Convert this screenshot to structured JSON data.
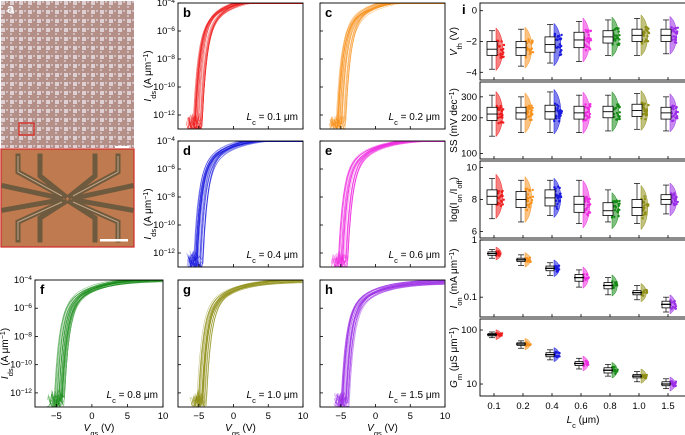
{
  "panels": {
    "a": "a",
    "b": "b",
    "c": "c",
    "d": "d",
    "e": "e",
    "f": "f",
    "g": "g",
    "h": "h",
    "i": "i"
  },
  "colors": {
    "0.1": "#ee1c1c",
    "0.2": "#f7921e",
    "0.4": "#1a1adf",
    "0.6": "#ee2ce0",
    "0.8": "#168a16",
    "1.0": "#8f8f18",
    "1.5": "#9a2ee6"
  },
  "transfer": {
    "xlabel": "V",
    "xlabel_sub": "gs",
    "xlabel_unit": " (V)",
    "ylabel": "I",
    "ylabel_sub": "ds",
    "ylabel_unit": " (A μm",
    "ylabel_exp": "−1",
    "ylabel_close": ")",
    "xticks": [
      "−5",
      "0",
      "5",
      "10"
    ],
    "yticks": [
      {
        "base": "10",
        "exp": "−4"
      },
      {
        "base": "10",
        "exp": "−6"
      },
      {
        "base": "10",
        "exp": "−8"
      },
      {
        "base": "10",
        "exp": "−10"
      },
      {
        "base": "10",
        "exp": "−12"
      }
    ],
    "lc_prefix": "L",
    "lc_sub": "c",
    "lc_unit": " μm"
  },
  "chart_data": [
    {
      "type": "line",
      "panel": "b",
      "Lc": "0.1",
      "label": "= 0.1",
      "xlim": [
        -8,
        10
      ],
      "ylim_log10": [
        -13,
        -4
      ],
      "vth": -5.1,
      "ion": 0.0003
    },
    {
      "type": "line",
      "panel": "c",
      "Lc": "0.2",
      "label": "= 0.2",
      "xlim": [
        -8,
        10
      ],
      "ylim_log10": [
        -13,
        -4
      ],
      "vth": -5.0,
      "ion": 0.00025
    },
    {
      "type": "line",
      "panel": "d",
      "Lc": "0.4",
      "label": "= 0.4",
      "xlim": [
        -8,
        10
      ],
      "ylim_log10": [
        -13,
        -4
      ],
      "vth": -5.0,
      "ion": 0.0002
    },
    {
      "type": "line",
      "panel": "e",
      "Lc": "0.6",
      "label": "= 0.6",
      "xlim": [
        -8,
        10
      ],
      "ylim_log10": [
        -13,
        -4
      ],
      "vth": -4.7,
      "ion": 0.00016
    },
    {
      "type": "line",
      "panel": "f",
      "Lc": "0.8",
      "label": "= 0.8",
      "xlim": [
        -8,
        10
      ],
      "ylim_log10": [
        -13,
        -4
      ],
      "vth": -4.6,
      "ion": 0.00012
    },
    {
      "type": "line",
      "panel": "g",
      "Lc": "1.0",
      "label": "= 1.0",
      "xlim": [
        -8,
        10
      ],
      "ylim_log10": [
        -13,
        -4
      ],
      "vth": -4.6,
      "ion": 0.0001
    },
    {
      "type": "line",
      "panel": "h",
      "Lc": "1.5",
      "label": "= 1.5",
      "xlim": [
        -8,
        10
      ],
      "ylim_log10": [
        -13,
        -4
      ],
      "vth": -4.5,
      "ion": 8e-05
    },
    {
      "type": "box",
      "panel": "i",
      "categories": [
        "0.1",
        "0.2",
        "0.4",
        "0.6",
        "0.8",
        "1.0",
        "1.5"
      ],
      "xlabel": "L",
      "xlabel_sub": "c",
      "xlabel_unit": " (μm)",
      "subplots": [
        {
          "id": "vth",
          "ylabel": "V",
          "ylabel_sub": "th",
          "ylabel_unit": " (V)",
          "scale": "linear",
          "ylim": [
            -4.5,
            0.5
          ],
          "yticks": [
            {
              "v": 0,
              "t": "0"
            },
            {
              "v": -2,
              "t": "−2"
            },
            {
              "v": -4,
              "t": "−4"
            }
          ],
          "median": [
            -2.5,
            -2.4,
            -2.2,
            -1.9,
            -1.7,
            -1.6,
            -1.6
          ],
          "q1": [
            -2.9,
            -2.9,
            -2.7,
            -2.4,
            -2.1,
            -2.0,
            -2.0
          ],
          "q3": [
            -2.0,
            -2.0,
            -1.7,
            -1.4,
            -1.3,
            -1.2,
            -1.2
          ],
          "min": [
            -3.8,
            -3.6,
            -3.4,
            -3.3,
            -2.9,
            -2.9,
            -2.8
          ],
          "max": [
            -1.3,
            -1.2,
            -0.9,
            -0.7,
            -0.6,
            -0.5,
            -0.6
          ]
        },
        {
          "id": "ss",
          "ylabel": "SS (mV dec",
          "ylabel_sub": "",
          "ylabel_exp": "−1",
          "ylabel_unit": ")",
          "scale": "log",
          "ylim": [
            90,
            400
          ],
          "yticks": [
            {
              "v": 300,
              "t": "300"
            },
            {
              "v": 200,
              "t": "200"
            },
            {
              "v": 100,
              "t": "100"
            }
          ],
          "median": [
            215,
            220,
            225,
            220,
            225,
            230,
            220
          ],
          "q1": [
            190,
            195,
            195,
            195,
            200,
            205,
            195
          ],
          "q3": [
            245,
            245,
            255,
            250,
            250,
            260,
            245
          ],
          "min": [
            140,
            150,
            150,
            150,
            155,
            160,
            155
          ],
          "max": [
            310,
            300,
            330,
            310,
            310,
            320,
            300
          ]
        },
        {
          "id": "onoff",
          "ylabel": "log(I",
          "ylabel_sub": "on",
          "ylabel_mid": "/I",
          "ylabel_sub2": "off",
          "ylabel_unit": ")",
          "scale": "linear",
          "ylim": [
            5.6,
            10.4
          ],
          "yticks": [
            {
              "v": 10,
              "t": "10"
            },
            {
              "v": 8,
              "t": "8"
            },
            {
              "v": 6,
              "t": "6"
            }
          ],
          "median": [
            8.2,
            8.0,
            8.1,
            7.7,
            7.3,
            7.5,
            8.0
          ],
          "q1": [
            7.7,
            7.5,
            7.6,
            7.2,
            7.0,
            7.0,
            7.7
          ],
          "q3": [
            8.6,
            8.5,
            8.6,
            8.2,
            7.8,
            8.0,
            8.3
          ],
          "min": [
            6.8,
            6.6,
            7.0,
            6.5,
            6.6,
            6.5,
            7.1
          ],
          "max": [
            9.3,
            9.2,
            9.2,
            9.2,
            8.6,
            9.0,
            8.9
          ]
        },
        {
          "id": "ion",
          "ylabel": "I",
          "ylabel_sub": "on",
          "ylabel_unit": " (mA μm",
          "ylabel_exp": "−1",
          "ylabel_close": ")",
          "scale": "log",
          "ylim": [
            0.045,
            1
          ],
          "yticks": [
            {
              "v": 1,
              "t": "1"
            },
            {
              "v": 0.1,
              "t": "0.1"
            }
          ],
          "median": [
            0.58,
            0.45,
            0.32,
            0.22,
            0.16,
            0.12,
            0.075
          ],
          "q1": [
            0.54,
            0.42,
            0.29,
            0.19,
            0.14,
            0.11,
            0.065
          ],
          "q3": [
            0.62,
            0.48,
            0.35,
            0.25,
            0.18,
            0.13,
            0.085
          ],
          "min": [
            0.48,
            0.36,
            0.24,
            0.15,
            0.11,
            0.09,
            0.055
          ],
          "max": [
            0.68,
            0.55,
            0.4,
            0.3,
            0.22,
            0.16,
            0.1
          ]
        },
        {
          "id": "gm",
          "ylabel": "G",
          "ylabel_sub": "m",
          "ylabel_unit": " (μS μm",
          "ylabel_exp": "−1",
          "ylabel_close": ")",
          "scale": "log",
          "ylim": [
            6,
            160
          ],
          "yticks": [
            {
              "v": 100,
              "t": "100"
            },
            {
              "v": 10,
              "t": "10"
            }
          ],
          "median": [
            82,
            55,
            35,
            24,
            18,
            14,
            10
          ],
          "q1": [
            78,
            52,
            32,
            22,
            16,
            13,
            9.3
          ],
          "q3": [
            86,
            58,
            38,
            26,
            20,
            15,
            11
          ],
          "min": [
            72,
            46,
            28,
            19,
            14,
            11,
            8.2
          ],
          "max": [
            92,
            63,
            43,
            30,
            23,
            17,
            12.5
          ]
        }
      ]
    }
  ]
}
